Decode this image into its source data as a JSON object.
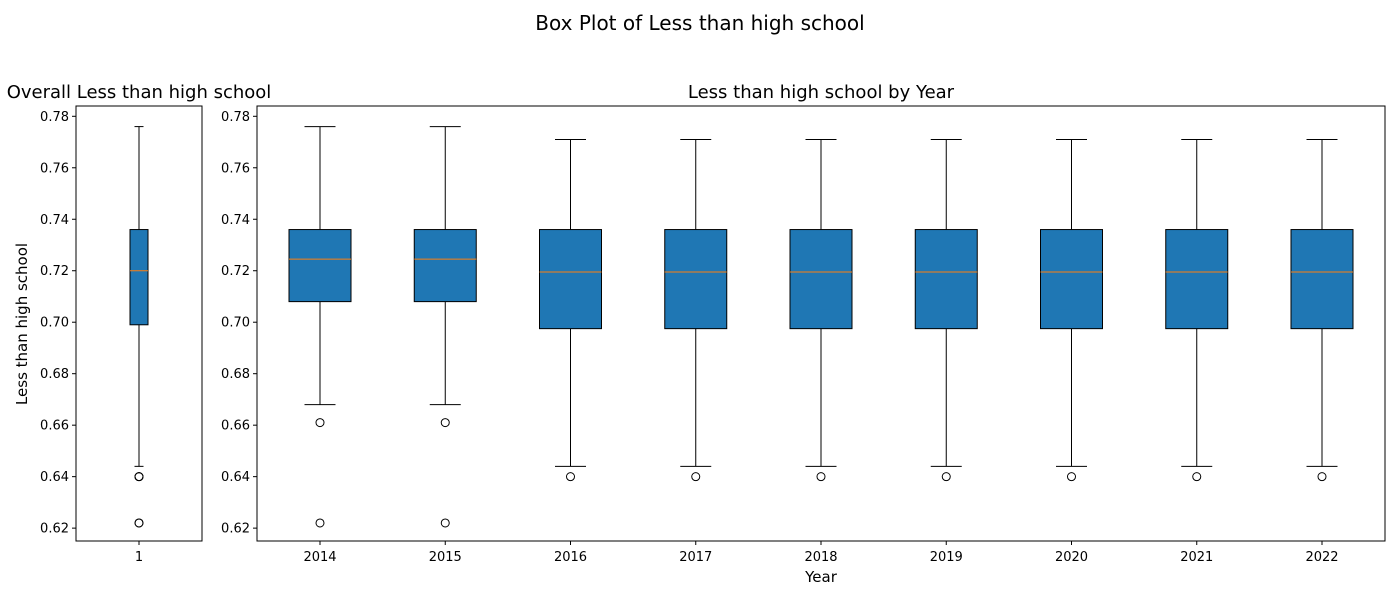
{
  "figure": {
    "title": "Box Plot of Less than high school"
  },
  "chart_data": [
    {
      "type": "box",
      "title": "Overall Less than high school",
      "xlabel": "",
      "ylabel": "Less than high school",
      "ylim": [
        0.615,
        0.784
      ],
      "yticks": [
        0.62,
        0.64,
        0.66,
        0.68,
        0.7,
        0.72,
        0.74,
        0.76,
        0.78
      ],
      "ytick_labels": [
        "0.62",
        "0.64",
        "0.66",
        "0.68",
        "0.70",
        "0.72",
        "0.74",
        "0.76",
        "0.78"
      ],
      "categories": [
        "1"
      ],
      "boxes": [
        {
          "label": "1",
          "whisker_low": 0.644,
          "q1": 0.699,
          "median": 0.72,
          "q3": 0.736,
          "whisker_high": 0.776,
          "outliers": [
            0.64,
            0.64,
            0.64,
            0.622,
            0.622
          ]
        }
      ],
      "box_color": "#1f77b4",
      "median_color": "#ff7f0e"
    },
    {
      "type": "box",
      "title": "Less than high school by Year",
      "xlabel": "Year",
      "ylabel": "",
      "ylim": [
        0.615,
        0.784
      ],
      "yticks": [
        0.62,
        0.64,
        0.66,
        0.68,
        0.7,
        0.72,
        0.74,
        0.76,
        0.78
      ],
      "ytick_labels": [
        "0.62",
        "0.64",
        "0.66",
        "0.68",
        "0.70",
        "0.72",
        "0.74",
        "0.76",
        "0.78"
      ],
      "categories": [
        "2014",
        "2015",
        "2016",
        "2017",
        "2018",
        "2019",
        "2020",
        "2021",
        "2022"
      ],
      "boxes": [
        {
          "label": "2014",
          "whisker_low": 0.668,
          "q1": 0.708,
          "median": 0.7245,
          "q3": 0.736,
          "whisker_high": 0.776,
          "outliers": [
            0.661,
            0.622
          ]
        },
        {
          "label": "2015",
          "whisker_low": 0.668,
          "q1": 0.708,
          "median": 0.7245,
          "q3": 0.736,
          "whisker_high": 0.776,
          "outliers": [
            0.661,
            0.622
          ]
        },
        {
          "label": "2016",
          "whisker_low": 0.644,
          "q1": 0.6975,
          "median": 0.7195,
          "q3": 0.736,
          "whisker_high": 0.771,
          "outliers": [
            0.64
          ]
        },
        {
          "label": "2017",
          "whisker_low": 0.644,
          "q1": 0.6975,
          "median": 0.7195,
          "q3": 0.736,
          "whisker_high": 0.771,
          "outliers": [
            0.64
          ]
        },
        {
          "label": "2018",
          "whisker_low": 0.644,
          "q1": 0.6975,
          "median": 0.7195,
          "q3": 0.736,
          "whisker_high": 0.771,
          "outliers": [
            0.64
          ]
        },
        {
          "label": "2019",
          "whisker_low": 0.644,
          "q1": 0.6975,
          "median": 0.7195,
          "q3": 0.736,
          "whisker_high": 0.771,
          "outliers": [
            0.64
          ]
        },
        {
          "label": "2020",
          "whisker_low": 0.644,
          "q1": 0.6975,
          "median": 0.7195,
          "q3": 0.736,
          "whisker_high": 0.771,
          "outliers": [
            0.64
          ]
        },
        {
          "label": "2021",
          "whisker_low": 0.644,
          "q1": 0.6975,
          "median": 0.7195,
          "q3": 0.736,
          "whisker_high": 0.771,
          "outliers": [
            0.64
          ]
        },
        {
          "label": "2022",
          "whisker_low": 0.644,
          "q1": 0.6975,
          "median": 0.7195,
          "q3": 0.736,
          "whisker_high": 0.771,
          "outliers": [
            0.64
          ]
        }
      ],
      "box_color": "#1f77b4",
      "median_color": "#ff7f0e"
    }
  ]
}
